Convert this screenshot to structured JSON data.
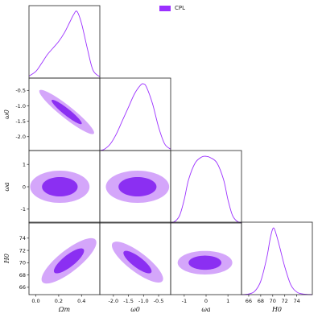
{
  "legend": {
    "label": "CPL",
    "color": "#9b30ff"
  },
  "colors": {
    "line": "#9b30ff",
    "outer_fill": "#d4a6fa",
    "inner_fill": "#8b2ff2",
    "frame": "#222222"
  },
  "chart_data": {
    "type": "corner",
    "parameters": [
      {
        "name": "Omega_m",
        "label": "Ωm",
        "range": [
          -0.06,
          0.56
        ],
        "ticks": [
          0.0,
          0.2,
          0.4
        ],
        "tick_labels": [
          "0.0",
          "0.2",
          "0.4"
        ]
      },
      {
        "name": "omega_0",
        "label": "ω0",
        "range": [
          -2.45,
          -0.1
        ],
        "ticks": [
          -2.0,
          -1.5,
          -1.0,
          -0.5
        ],
        "tick_labels": [
          "-2.0",
          "-1.5",
          "-1.0",
          "-0.5"
        ]
      },
      {
        "name": "omega_a",
        "label": "ωa",
        "range": [
          -1.62,
          1.62
        ],
        "ticks": [
          -1,
          0,
          1
        ],
        "tick_labels": [
          "-1",
          "0",
          "1"
        ]
      },
      {
        "name": "H_0",
        "label": "H0",
        "range": [
          64.8,
          76.6
        ],
        "ticks": [
          66,
          68,
          70,
          72,
          74
        ],
        "tick_labels": [
          "66",
          "68",
          "70",
          "72",
          "74"
        ]
      }
    ],
    "y_axis_ticks": {
      "omega_0": {
        "ticks": [
          -0.5,
          -1.0,
          -1.5,
          -2.0
        ],
        "tick_labels": [
          "-0.5",
          "-1.0",
          "-1.5",
          "-2.0"
        ]
      },
      "omega_a": {
        "ticks": [
          1,
          0,
          -1
        ],
        "tick_labels": [
          "1",
          "0",
          "-1"
        ]
      },
      "H_0": {
        "ticks": [
          74,
          72,
          70,
          68,
          66
        ],
        "tick_labels": [
          "74",
          "72",
          "70",
          "68",
          "66"
        ]
      }
    },
    "marginals": [
      {
        "param": "Omega_m",
        "x": [
          -0.06,
          0.0,
          0.05,
          0.1,
          0.15,
          0.2,
          0.25,
          0.3,
          0.33,
          0.36,
          0.4,
          0.45,
          0.5,
          0.56
        ],
        "density": [
          0.03,
          0.1,
          0.22,
          0.35,
          0.45,
          0.55,
          0.68,
          0.85,
          0.95,
          1.0,
          0.82,
          0.45,
          0.12,
          0.02
        ]
      },
      {
        "param": "omega_0",
        "x": [
          -2.45,
          -2.3,
          -2.1,
          -1.9,
          -1.7,
          -1.5,
          -1.3,
          -1.1,
          -1.0,
          -0.9,
          -0.7,
          -0.5,
          -0.3,
          -0.1
        ],
        "density": [
          0.0,
          0.02,
          0.1,
          0.25,
          0.45,
          0.65,
          0.85,
          0.98,
          1.0,
          0.95,
          0.7,
          0.35,
          0.1,
          0.02
        ]
      },
      {
        "param": "omega_a",
        "x": [
          -1.62,
          -1.4,
          -1.2,
          -1.0,
          -0.8,
          -0.5,
          -0.2,
          0.0,
          0.2,
          0.5,
          0.8,
          1.0,
          1.2,
          1.4,
          1.62
        ],
        "density": [
          0.0,
          0.03,
          0.12,
          0.35,
          0.65,
          0.9,
          0.99,
          1.0,
          0.98,
          0.9,
          0.65,
          0.35,
          0.12,
          0.03,
          0.0
        ]
      },
      {
        "param": "H_0",
        "x": [
          64.8,
          66.0,
          67.0,
          68.0,
          69.0,
          69.6,
          70.1,
          70.6,
          71.2,
          72.0,
          73.0,
          74.0,
          75.0,
          76.6
        ],
        "density": [
          0.0,
          0.01,
          0.05,
          0.2,
          0.55,
          0.85,
          1.0,
          0.9,
          0.7,
          0.42,
          0.15,
          0.04,
          0.01,
          0.0
        ]
      }
    ],
    "contours": [
      {
        "x_param": "Omega_m",
        "y_param": "omega_0",
        "center": [
          0.27,
          -1.2
        ],
        "semi_axes": [
          0.24,
          0.42
        ],
        "slope": -2.8,
        "inner_scale": 0.55
      },
      {
        "x_param": "Omega_m",
        "y_param": "omega_a",
        "center": [
          0.21,
          0.0
        ],
        "semi_axes": [
          0.26,
          1.2
        ],
        "slope": 0.0,
        "inner_scale": 0.6
      },
      {
        "x_param": "Omega_m",
        "y_param": "H_0",
        "center": [
          0.29,
          70.3
        ],
        "semi_axes": [
          0.24,
          3.6
        ],
        "slope": 12.5,
        "inner_scale": 0.55
      },
      {
        "x_param": "omega_0",
        "y_param": "omega_a",
        "center": [
          -1.2,
          0.0
        ],
        "semi_axes": [
          1.05,
          1.2
        ],
        "slope": 0.0,
        "inner_scale": 0.6
      },
      {
        "x_param": "omega_0",
        "y_param": "H_0",
        "center": [
          -1.2,
          70.1
        ],
        "semi_axes": [
          0.85,
          3.2
        ],
        "slope": -3.2,
        "inner_scale": 0.55
      },
      {
        "x_param": "omega_a",
        "y_param": "H_0",
        "center": [
          -0.05,
          70.0
        ],
        "semi_axes": [
          1.25,
          3.2
        ],
        "slope": 0.0,
        "inner_scale": 0.6
      }
    ],
    "grid": false,
    "legend_position": "top-center"
  }
}
